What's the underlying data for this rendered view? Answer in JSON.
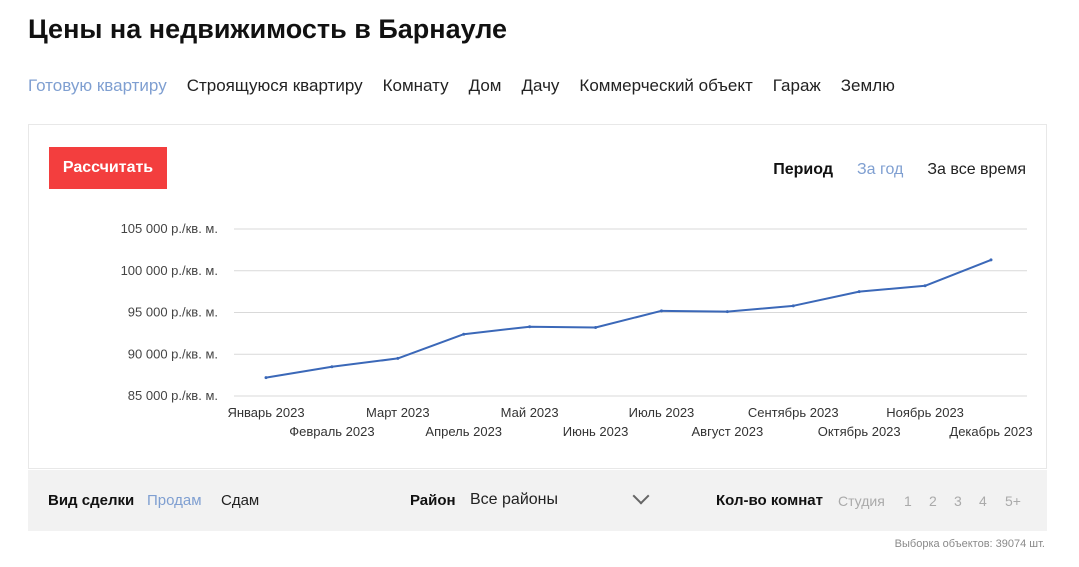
{
  "page": {
    "title": "Цены на недвижимость в Барнауле"
  },
  "tabs": [
    {
      "label": "Готовую квартиру",
      "active": true
    },
    {
      "label": "Строящуюся квартиру",
      "active": false
    },
    {
      "label": "Комнату",
      "active": false
    },
    {
      "label": "Дом",
      "active": false
    },
    {
      "label": "Дачу",
      "active": false
    },
    {
      "label": "Коммерческий объект",
      "active": false
    },
    {
      "label": "Гараж",
      "active": false
    },
    {
      "label": "Землю",
      "active": false
    }
  ],
  "panel": {
    "calc_button": "Рассчитать",
    "period_label": "Период",
    "period_options": [
      {
        "label": "За год",
        "active": true
      },
      {
        "label": "За все время",
        "active": false
      }
    ]
  },
  "chart_data": {
    "type": "line",
    "x": [
      "Январь 2023",
      "Февраль 2023",
      "Март 2023",
      "Апрель 2023",
      "Май 2023",
      "Июнь 2023",
      "Июль 2023",
      "Август 2023",
      "Сентябрь 2023",
      "Октябрь 2023",
      "Ноябрь 2023",
      "Декабрь 2023"
    ],
    "series": [
      {
        "values": [
          87200,
          88500,
          89500,
          92400,
          93300,
          93200,
          95200,
          95100,
          95800,
          97500,
          98200,
          101300
        ]
      }
    ],
    "y_ticks": [
      85000,
      90000,
      95000,
      100000,
      105000
    ],
    "y_tick_labels": [
      "85 000 р./кв. м.",
      "90 000 р./кв. м.",
      "95 000 р./кв. м.",
      "100 000 р./кв. м.",
      "105 000 р./кв. м."
    ],
    "ylim": [
      85000,
      105000
    ],
    "grid": true,
    "line_color": "#3b68b8"
  },
  "filters": {
    "deal_label": "Вид сделки",
    "deal_options": [
      {
        "label": "Продам",
        "active": true
      },
      {
        "label": "Сдам",
        "active": false
      }
    ],
    "district_label": "Район",
    "district_value": "Все районы",
    "rooms_label": "Кол-во комнат",
    "rooms_options": [
      "Студия",
      "1",
      "2",
      "3",
      "4",
      "5+"
    ]
  },
  "footer": {
    "count_text": "Выборка объектов: 39074 шт."
  }
}
